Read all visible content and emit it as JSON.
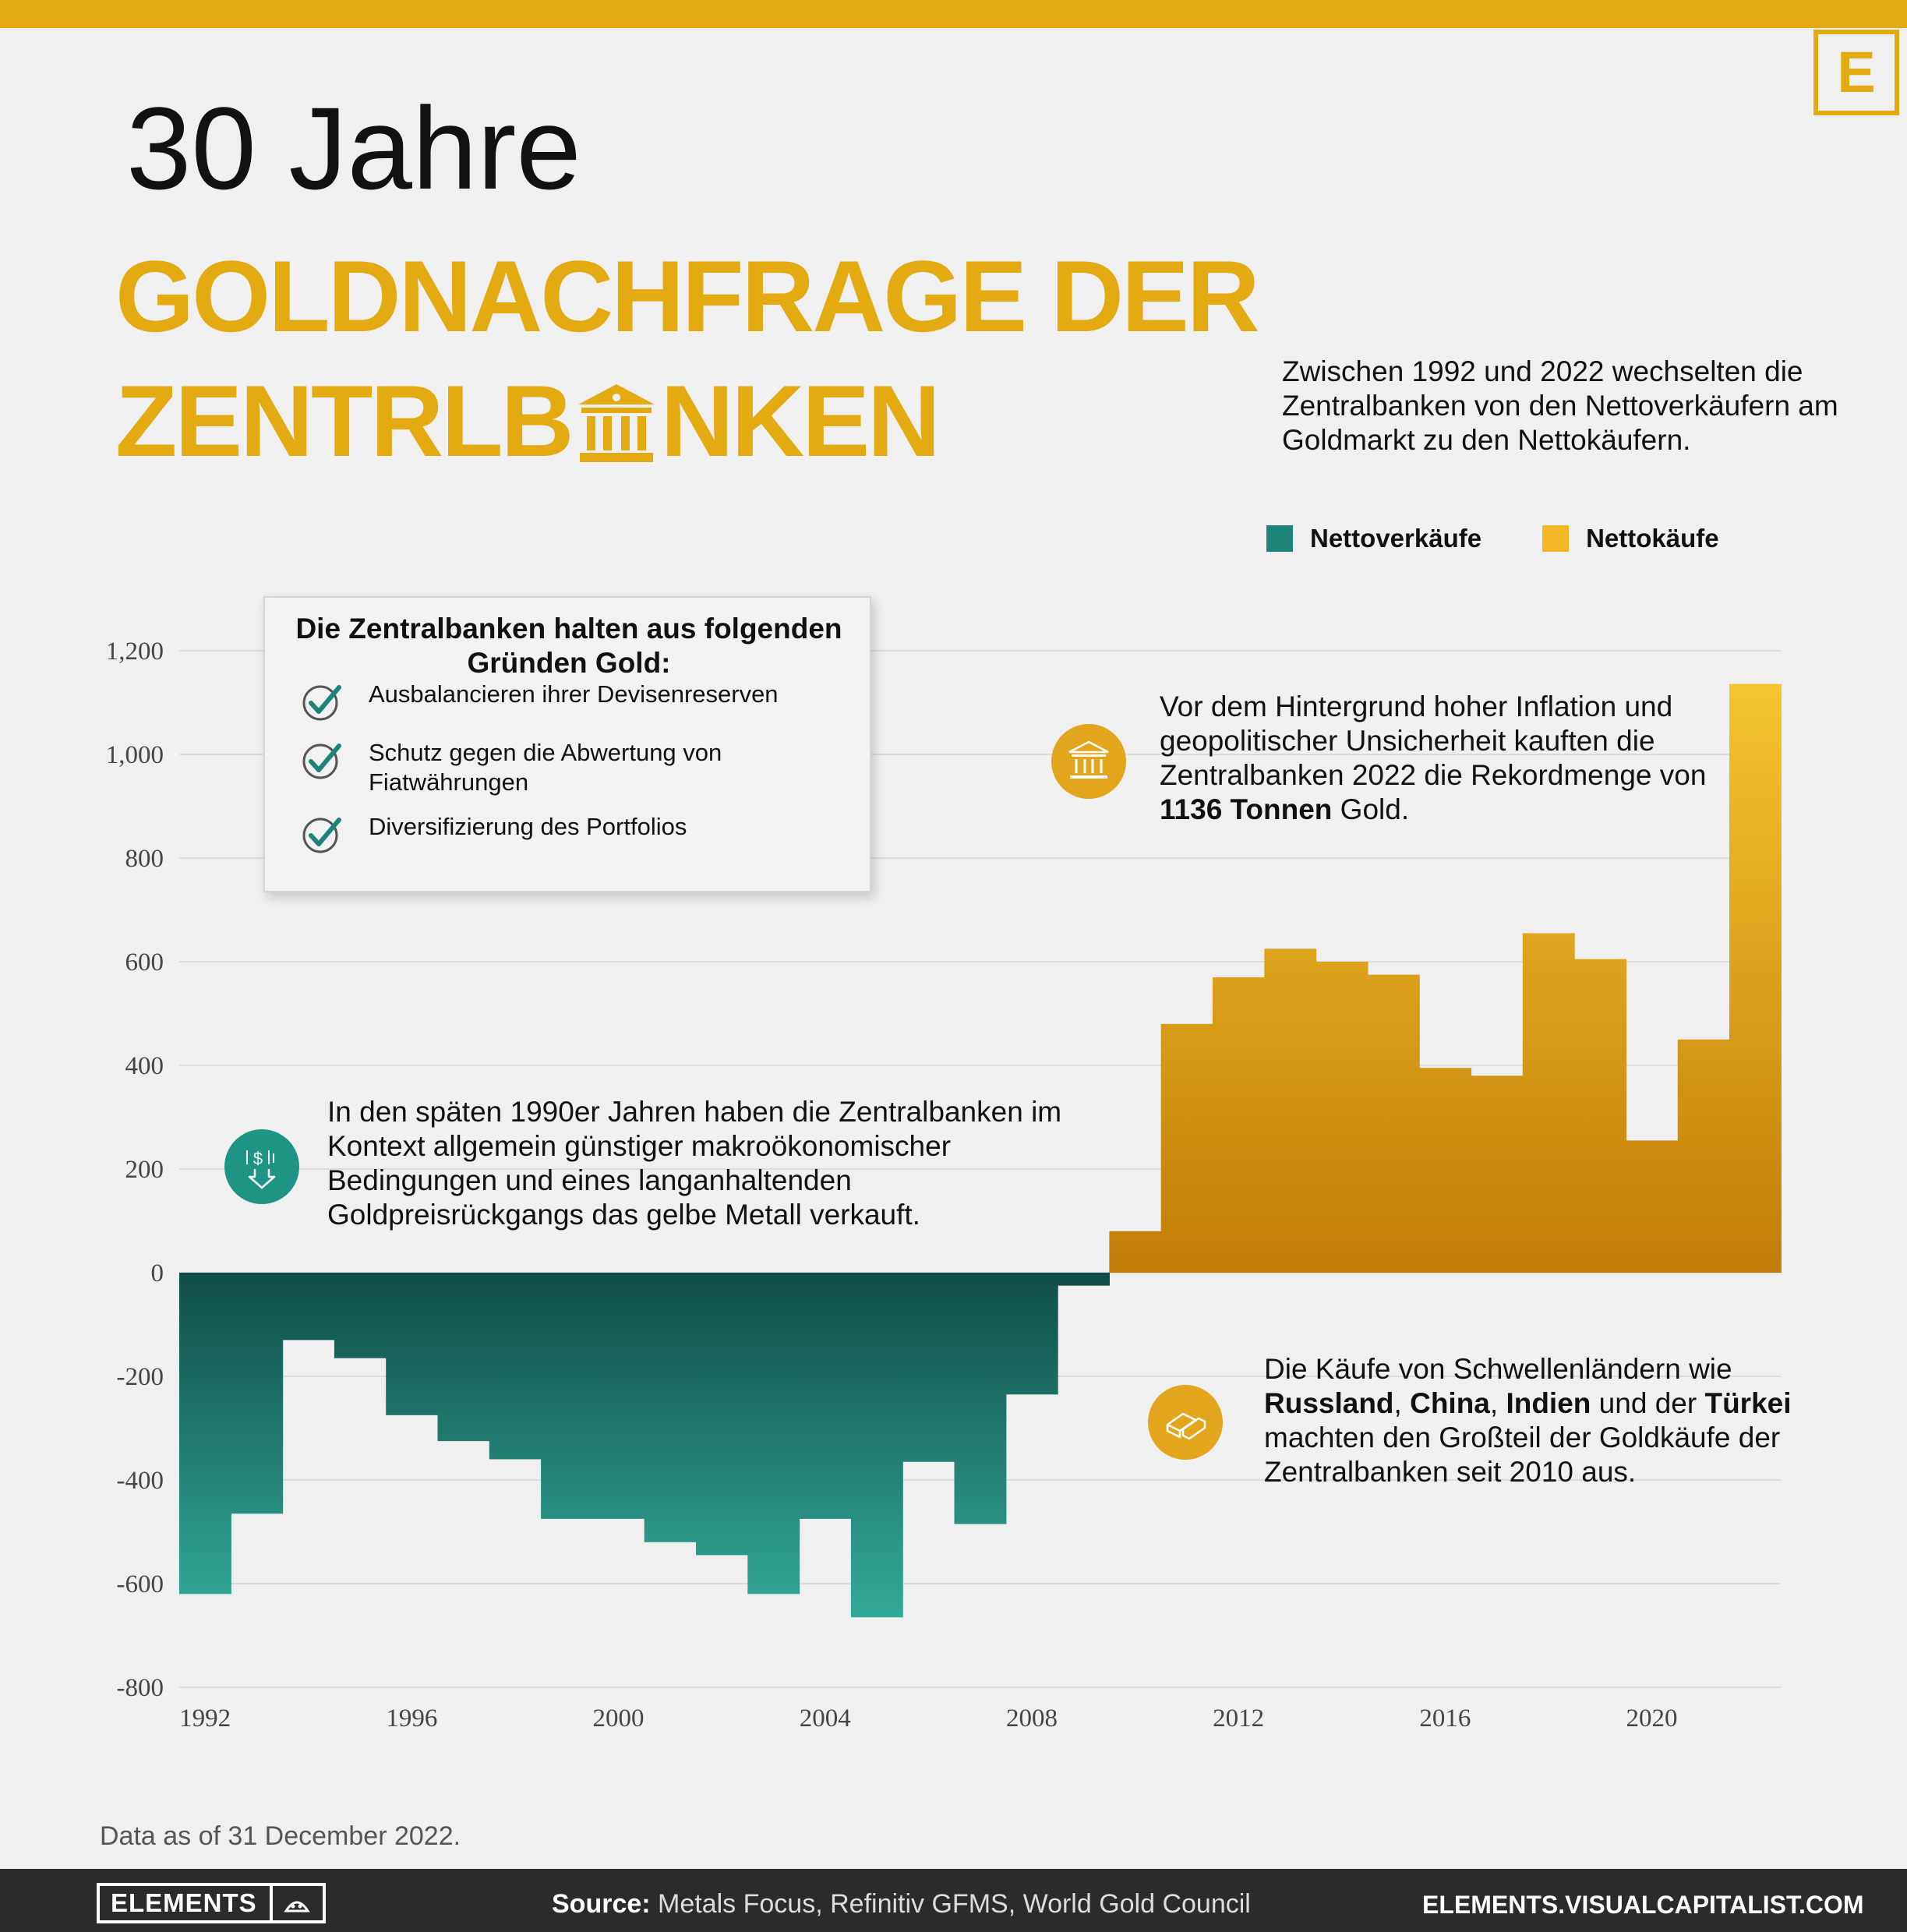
{
  "brand": {
    "badge": "E",
    "logo_text": "ELEMENTS",
    "site": "ELEMENTS.VISUALCAPITALIST.COM"
  },
  "title": {
    "small": "30 Jahre",
    "line1": "GOLDNACHFRAGE DER",
    "line2_start": "ZENTRLB",
    "line2_end": "NKEN"
  },
  "intro": "Zwischen 1992 und 2022 wechselten die Zentralbanken von den Nettoverkäufern am Goldmarkt zu den Nettokäufern.",
  "reasons": {
    "title": "Die Zentralbanken halten aus folgenden Gründen Gold:",
    "items": [
      "Ausbalancieren ihrer Devisenreserven",
      "Schutz gegen die Abwertung von Fiatwährungen",
      "Diversifizierung des Portfolios"
    ]
  },
  "callouts": {
    "late90s": "In den späten 1990er Jahren haben die Zentralbanken im Kontext allgemein günstiger makroökonomischer Bedingungen und eines langanhaltenden Goldpreisrückgangs das gelbe Metall verkauft.",
    "record_2022": {
      "pre": "Vor dem Hintergrund hoher Inflation und geopolitischer Unsicherheit kauften die Zentralbanken 2022 die Rekordmenge von ",
      "bold": "1136 Tonnen",
      "post": " Gold."
    },
    "emerging": {
      "t1": "Die Käufe von Schwellenländern wie ",
      "b1": "Russland",
      "t2": ", ",
      "b2": "China",
      "t3": ", ",
      "b3": "Indien",
      "t4": " und der ",
      "b4": "Türkei",
      "t5": " machten den Großteil der Goldkäufe der Zentralbanken seit 2010 aus."
    }
  },
  "note": "Data as of 31 December 2022.",
  "source": {
    "label": "Source:",
    "text": " Metals Focus, Refinitiv GFMS, World Gold Council"
  },
  "colors": {
    "accent": "#e4aa12",
    "sales_top": "#0f4d45",
    "sales_bottom": "#33aa98",
    "buys_top": "#f6c530",
    "buys_bottom": "#c27d08"
  },
  "icons": [
    "bank-icon",
    "check-icon",
    "dollar-down-icon",
    "gold-bars-icon"
  ],
  "chart_data": {
    "type": "bar",
    "x": [
      1992,
      1993,
      1994,
      1995,
      1996,
      1997,
      1998,
      1999,
      2000,
      2001,
      2002,
      2003,
      2004,
      2005,
      2006,
      2007,
      2008,
      2009,
      2010,
      2011,
      2012,
      2013,
      2014,
      2015,
      2016,
      2017,
      2018,
      2019,
      2020,
      2021,
      2022
    ],
    "values": [
      -620,
      -465,
      -130,
      -165,
      -275,
      -325,
      -360,
      -475,
      -475,
      -520,
      -545,
      -620,
      -475,
      -665,
      -365,
      -485,
      -235,
      -25,
      80,
      480,
      570,
      625,
      600,
      575,
      395,
      380,
      655,
      605,
      255,
      450,
      1136
    ],
    "series": [
      {
        "name": "Nettoverkäufe",
        "color": "#1e8378"
      },
      {
        "name": "Nettokäufe",
        "color": "#f3b727"
      }
    ],
    "ylim": [
      -800,
      1200
    ],
    "yticks": [
      "1,200",
      "1,000",
      "800",
      "600",
      "400",
      "200",
      "0",
      "-200",
      "-400",
      "-600",
      "-800"
    ],
    "xticks": [
      "1992",
      "1996",
      "2000",
      "2004",
      "2008",
      "2012",
      "2016",
      "2020"
    ],
    "legend_position": "top-right",
    "grid": true
  }
}
